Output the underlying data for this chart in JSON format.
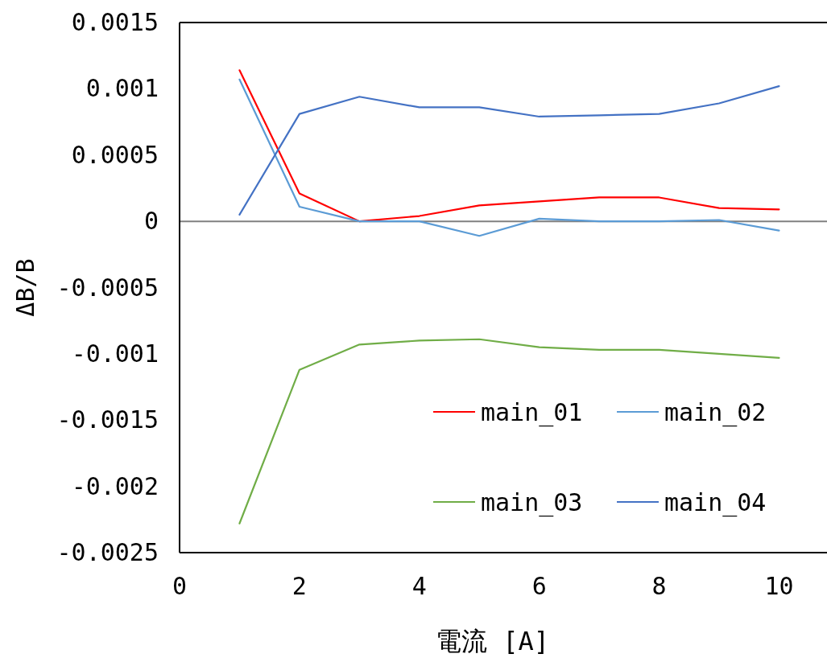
{
  "chart_data": {
    "type": "line",
    "xlabel": "電流 [A]",
    "ylabel": "ΔB/B",
    "x": [
      1,
      2,
      3,
      4,
      5,
      6,
      7,
      8,
      9,
      10
    ],
    "series": [
      {
        "name": "main_01",
        "color": "#ff0000",
        "values": [
          0.00114,
          0.00021,
          0.0,
          4e-05,
          0.00012,
          0.00015,
          0.00018,
          0.00018,
          0.0001,
          9e-05
        ]
      },
      {
        "name": "main_02",
        "color": "#5b9bd5",
        "values": [
          0.00107,
          0.00011,
          0.0,
          0.0,
          -0.00011,
          2e-05,
          0.0,
          0.0,
          1e-05,
          -7e-05
        ]
      },
      {
        "name": "main_03",
        "color": "#70ad47",
        "values": [
          -0.00228,
          -0.00112,
          -0.00093,
          -0.0009,
          -0.00089,
          -0.00095,
          -0.00097,
          -0.00097,
          -0.001,
          -0.00103
        ]
      },
      {
        "name": "main_04",
        "color": "#4472c4",
        "values": [
          5e-05,
          0.00081,
          0.00094,
          0.00086,
          0.00086,
          0.00079,
          0.0008,
          0.00081,
          0.00089,
          0.00102
        ]
      }
    ],
    "xlim": [
      0,
      10.8
    ],
    "xticks": [
      0,
      2,
      4,
      6,
      8,
      10
    ],
    "ylim": [
      -0.0025,
      0.0015
    ],
    "yticks": [
      -0.0025,
      -0.002,
      -0.0015,
      -0.001,
      -0.0005,
      0,
      0.0005,
      0.001,
      0.0015
    ],
    "ref_lines": [
      {
        "axis": "y",
        "value": 0,
        "color": "#808080"
      }
    ],
    "legend": "bottom right"
  }
}
